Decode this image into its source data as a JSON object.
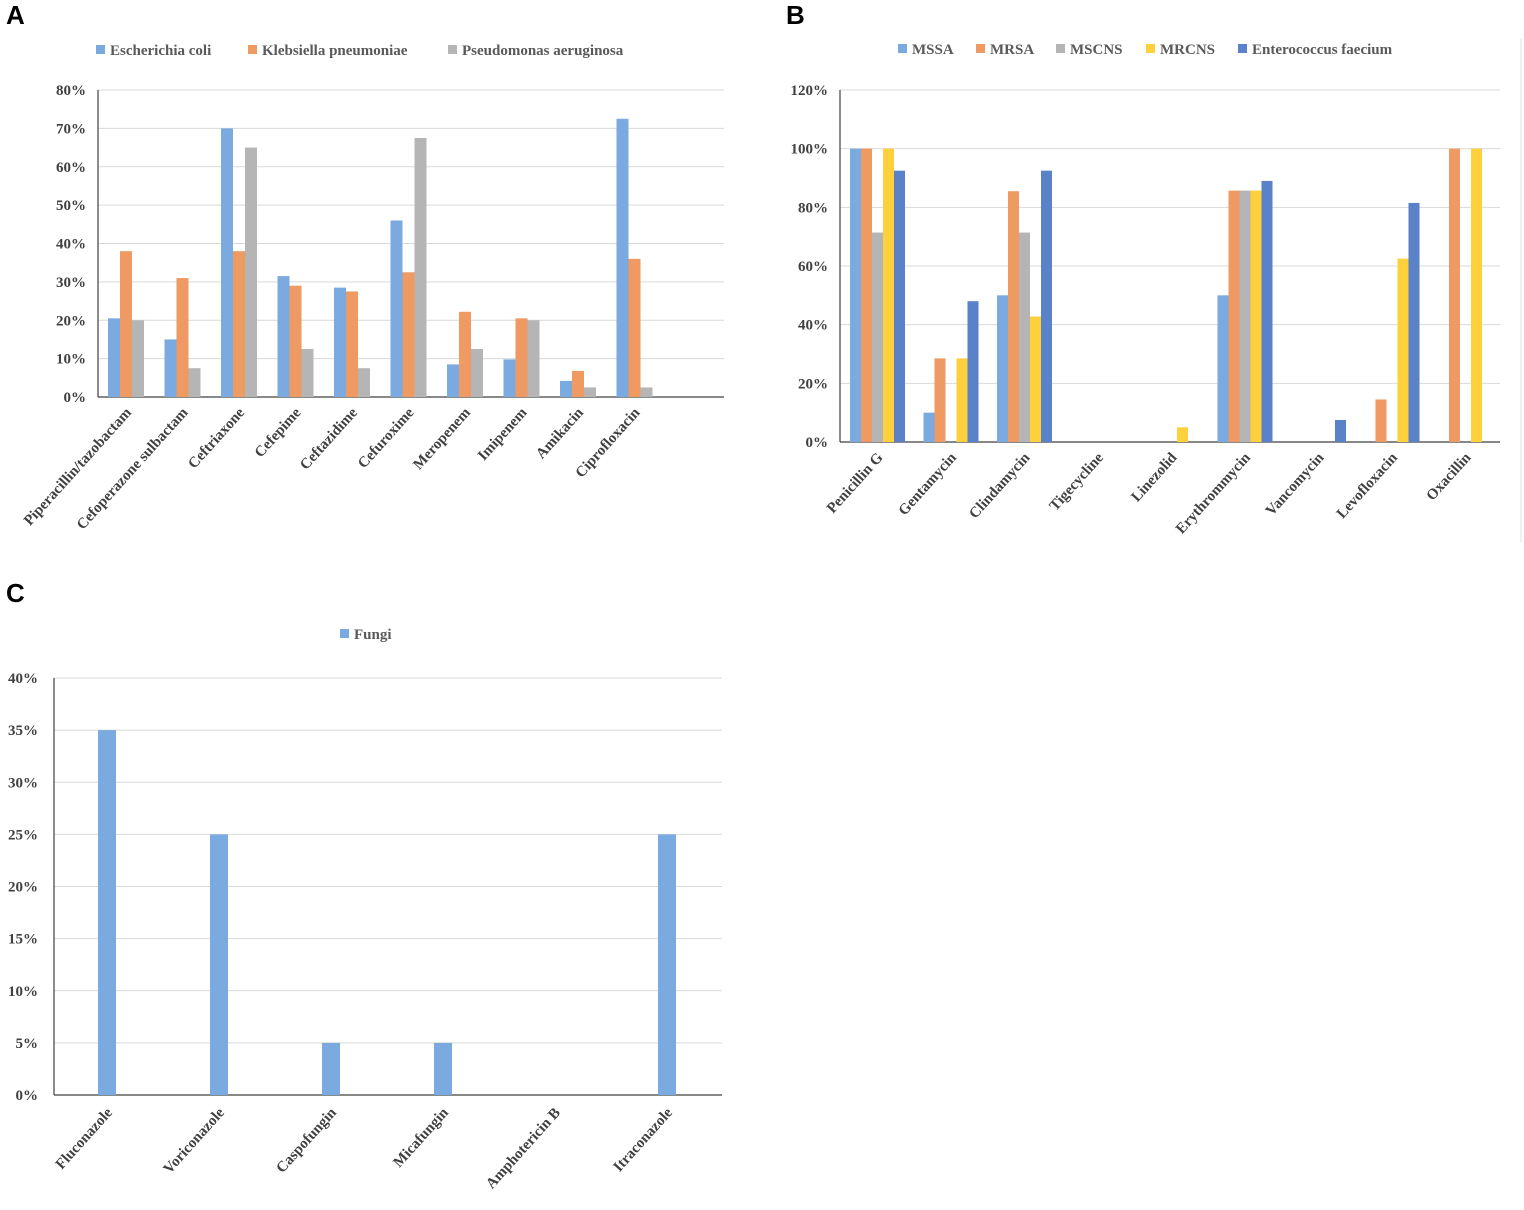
{
  "panels": [
    "A",
    "B",
    "C"
  ],
  "colors": {
    "blue": "#7aaadf",
    "orange": "#ee9a62",
    "gray": "#b5b5b5",
    "yellow": "#fdd03c",
    "darkblue": "#5a82c8"
  },
  "chart_data": [
    {
      "panel": "A",
      "type": "bar",
      "title": "",
      "xlabel": "",
      "ylabel": "",
      "ylim": [
        0,
        80
      ],
      "yticks": [
        "0%",
        "10%",
        "20%",
        "30%",
        "40%",
        "50%",
        "60%",
        "70%",
        "80%"
      ],
      "categories": [
        "Piperacillin/tazobactam",
        "Cefoperazone sulbactam",
        "Ceftriaxone",
        "Cefepime",
        "Ceftazidime",
        "Cefuroxime",
        "Meropenem",
        "Imipenem",
        "Amikacin",
        "Ciprofloxacin"
      ],
      "series": [
        {
          "name": "Escherichia coli",
          "color": "#7aaadf",
          "values": [
            20.5,
            15,
            70,
            31.5,
            28.5,
            46,
            8.5,
            9.8,
            4.2,
            72.5
          ]
        },
        {
          "name": "Klebsiella pneumoniae",
          "color": "#ee9a62",
          "values": [
            38,
            31,
            38,
            29,
            27.5,
            32.5,
            22.2,
            20.5,
            6.8,
            36
          ]
        },
        {
          "name": "Pseudomonas aeruginosa",
          "color": "#b5b5b5",
          "values": [
            20,
            7.5,
            65,
            12.5,
            7.5,
            67.5,
            12.5,
            20,
            2.5,
            2.5
          ]
        }
      ]
    },
    {
      "panel": "B",
      "type": "bar",
      "title": "",
      "xlabel": "",
      "ylabel": "",
      "ylim": [
        0,
        120
      ],
      "yticks": [
        "0%",
        "20%",
        "40%",
        "60%",
        "80%",
        "100%",
        "120%"
      ],
      "categories": [
        "Penicillin G",
        "Gentamycin",
        "Clindamycin",
        "Tigecycline",
        "Linezolid",
        "Erythrommycin",
        "Vancomycin",
        "Levofloxacin",
        "Oxacillin"
      ],
      "series": [
        {
          "name": "MSSA",
          "color": "#7aaadf",
          "values": [
            100,
            10,
            50,
            0,
            0,
            50,
            0,
            0,
            0
          ]
        },
        {
          "name": "MRSA",
          "color": "#ee9a62",
          "values": [
            100,
            28.5,
            85.5,
            0,
            0,
            85.7,
            0,
            14.5,
            100
          ]
        },
        {
          "name": "MSCNS",
          "color": "#b5b5b5",
          "values": [
            71.4,
            0,
            71.4,
            0,
            0,
            85.7,
            0,
            0,
            0
          ]
        },
        {
          "name": "MRCNS",
          "color": "#fdd03c",
          "values": [
            100,
            28.5,
            42.8,
            0,
            5,
            85.7,
            0,
            62.5,
            100
          ]
        },
        {
          "name": "Enterococcus faecium",
          "color": "#5a82c8",
          "values": [
            92.5,
            48,
            92.5,
            0,
            0,
            89,
            7.5,
            81.5,
            0
          ]
        }
      ]
    },
    {
      "panel": "C",
      "type": "bar",
      "title": "",
      "xlabel": "",
      "ylabel": "",
      "ylim": [
        0,
        40
      ],
      "yticks": [
        "0%",
        "5%",
        "10%",
        "15%",
        "20%",
        "25%",
        "30%",
        "35%",
        "40%"
      ],
      "categories": [
        "Fluconazole",
        "Voriconazole",
        "Caspofungin",
        "Micafungin",
        "Amphotericin B",
        "Itraconazole"
      ],
      "series": [
        {
          "name": "Fungi",
          "color": "#7aaadf",
          "values": [
            35,
            25,
            5,
            5,
            0,
            25
          ]
        }
      ]
    }
  ]
}
